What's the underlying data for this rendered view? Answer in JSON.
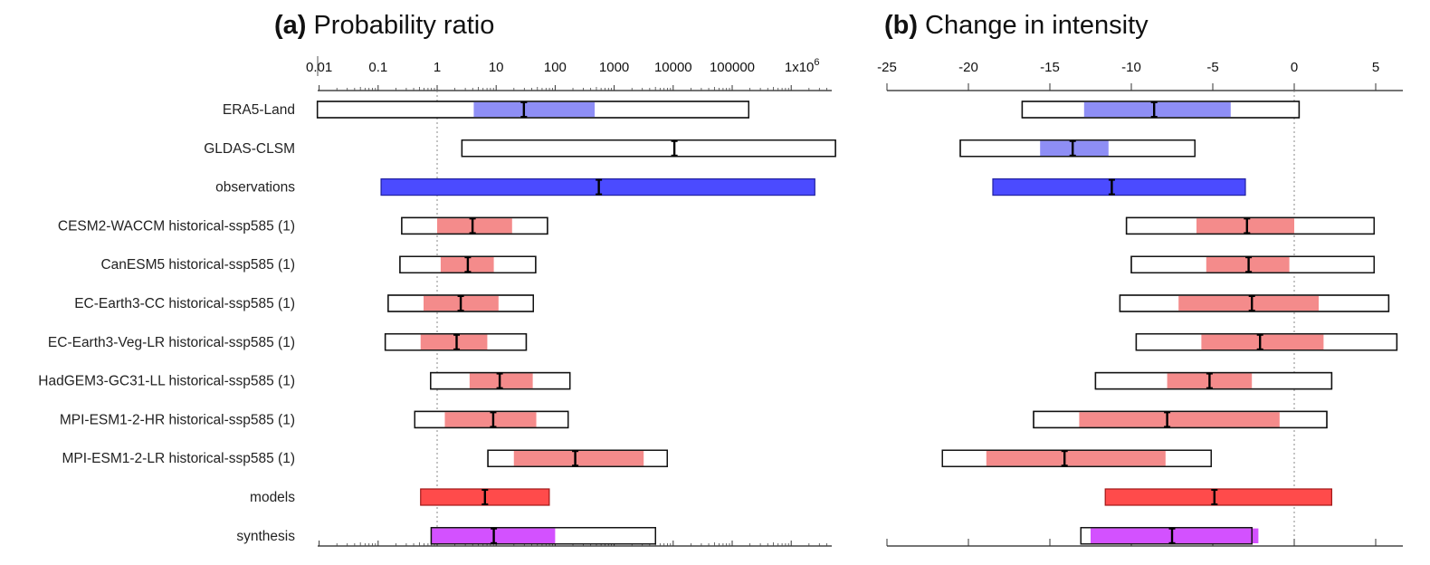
{
  "chart_data": [
    {
      "type": "bar",
      "subtype": "interval-bar (horizontal, log x)",
      "panel": "(a)",
      "title": "Probability ratio",
      "xlabel": "",
      "xscale": "log",
      "xlim_log10": [
        -2,
        6.7
      ],
      "tick_labels": [
        "0.01",
        "0.1",
        "1",
        "10",
        "100",
        "1000",
        "10000",
        "100000",
        "1x10^6"
      ],
      "tick_values": [
        0.01,
        0.1,
        1,
        10,
        100,
        1000,
        10000,
        100000,
        1000000
      ],
      "reference_line": 1,
      "note": "values below are log10(probability ratio): best estimate, outer (total) interval, inner (natural variability) interval",
      "rows": [
        {
          "label": "ERA5-Land",
          "group": "obs",
          "best": 1.47,
          "outer": [
            -2.03,
            5.28
          ],
          "inner": [
            0.62,
            2.67
          ]
        },
        {
          "label": "GLDAS-CLSM",
          "group": "obs",
          "best": 4.02,
          "outer": [
            0.42,
            6.75
          ],
          "inner": null
        },
        {
          "label": "observations",
          "group": "obs-synth",
          "best": 2.74,
          "outer": [
            -0.95,
            6.4
          ],
          "inner": null
        },
        {
          "label": "CESM2-WACCM historical-ssp585 (1)",
          "group": "model",
          "best": 0.6,
          "outer": [
            -0.6,
            1.87
          ],
          "inner": [
            0.0,
            1.27
          ]
        },
        {
          "label": "CanESM5 historical-ssp585 (1)",
          "group": "model",
          "best": 0.52,
          "outer": [
            -0.63,
            1.67
          ],
          "inner": [
            0.06,
            0.96
          ]
        },
        {
          "label": "EC-Earth3-CC historical-ssp585 (1)",
          "group": "model",
          "best": 0.4,
          "outer": [
            -0.83,
            1.63
          ],
          "inner": [
            -0.23,
            1.04
          ]
        },
        {
          "label": "EC-Earth3-Veg-LR historical-ssp585 (1)",
          "group": "model",
          "best": 0.33,
          "outer": [
            -0.88,
            1.51
          ],
          "inner": [
            -0.28,
            0.85
          ]
        },
        {
          "label": "HadGEM3-GC31-LL historical-ssp585 (1)",
          "group": "model",
          "best": 1.06,
          "outer": [
            -0.11,
            2.25
          ],
          "inner": [
            0.55,
            1.62
          ]
        },
        {
          "label": "MPI-ESM1-2-HR historical-ssp585 (1)",
          "group": "model",
          "best": 0.95,
          "outer": [
            -0.38,
            2.22
          ],
          "inner": [
            0.13,
            1.68
          ]
        },
        {
          "label": "MPI-ESM1-2-LR historical-ssp585 (1)",
          "group": "model",
          "best": 2.34,
          "outer": [
            0.86,
            3.9
          ],
          "inner": [
            1.3,
            3.5
          ]
        },
        {
          "label": "models",
          "group": "model-synth",
          "best": 0.81,
          "outer": [
            -0.28,
            1.9
          ],
          "inner": null
        },
        {
          "label": "synthesis",
          "group": "synthesis",
          "best": 0.96,
          "outer": [
            -0.1,
            3.7
          ],
          "inner": [
            -0.1,
            2.0
          ]
        }
      ]
    },
    {
      "type": "bar",
      "subtype": "interval-bar (horizontal, linear x)",
      "panel": "(b)",
      "title": "Change in intensity",
      "xlabel": "",
      "xscale": "linear",
      "xlim": [
        -25,
        6.7
      ],
      "tick_labels": [
        "-25",
        "-20",
        "-15",
        "-10",
        "-5",
        "0",
        "5"
      ],
      "tick_values": [
        -25,
        -20,
        -15,
        -10,
        -5,
        0,
        5
      ],
      "reference_line": 0,
      "rows": [
        {
          "label": "ERA5-Land",
          "group": "obs",
          "best": -8.6,
          "outer": [
            -16.7,
            0.3
          ],
          "inner": [
            -12.9,
            -3.9
          ]
        },
        {
          "label": "GLDAS-CLSM",
          "group": "obs",
          "best": -13.6,
          "outer": [
            -20.5,
            -6.1
          ],
          "inner": [
            -15.6,
            -11.4
          ]
        },
        {
          "label": "observations",
          "group": "obs-synth",
          "best": -11.2,
          "outer": [
            -18.5,
            -3.0
          ],
          "inner": null
        },
        {
          "label": "CESM2-WACCM historical-ssp585 (1)",
          "group": "model",
          "best": -2.9,
          "outer": [
            -10.3,
            4.9
          ],
          "inner": [
            -6.0,
            0.0
          ]
        },
        {
          "label": "CanESM5 historical-ssp585 (1)",
          "group": "model",
          "best": -2.8,
          "outer": [
            -10.0,
            4.9
          ],
          "inner": [
            -5.4,
            -0.3
          ]
        },
        {
          "label": "EC-Earth3-CC historical-ssp585 (1)",
          "group": "model",
          "best": -2.6,
          "outer": [
            -10.7,
            5.8
          ],
          "inner": [
            -7.1,
            1.5
          ]
        },
        {
          "label": "EC-Earth3-Veg-LR historical-ssp585 (1)",
          "group": "model",
          "best": -2.1,
          "outer": [
            -9.7,
            6.3
          ],
          "inner": [
            -5.7,
            1.8
          ]
        },
        {
          "label": "HadGEM3-GC31-LL historical-ssp585 (1)",
          "group": "model",
          "best": -5.2,
          "outer": [
            -12.2,
            2.3
          ],
          "inner": [
            -7.8,
            -2.6
          ]
        },
        {
          "label": "MPI-ESM1-2-HR historical-ssp585 (1)",
          "group": "model",
          "best": -7.8,
          "outer": [
            -16.0,
            2.0
          ],
          "inner": [
            -13.2,
            -0.9
          ]
        },
        {
          "label": "MPI-ESM1-2-LR historical-ssp585 (1)",
          "group": "model",
          "best": -14.1,
          "outer": [
            -21.6,
            -5.1
          ],
          "inner": [
            -18.9,
            -7.9
          ]
        },
        {
          "label": "models",
          "group": "model-synth",
          "best": -4.9,
          "outer": [
            -11.6,
            2.3
          ],
          "inner": null
        },
        {
          "label": "synthesis",
          "group": "synthesis",
          "best": -7.5,
          "outer": [
            -13.1,
            -2.6
          ],
          "inner": [
            -12.5,
            -2.2
          ]
        }
      ]
    }
  ],
  "colors": {
    "obs_inner": "#8a8af5",
    "obs_synth": "#4b4bff",
    "model_inner": "#f48787",
    "model_synth": "#ff4b4b",
    "synthesis": "#d24bff",
    "outline": "#111111",
    "refline": "#888888"
  },
  "titles": {
    "a_letter": "(a)",
    "a_text": "Probability ratio",
    "b_letter": "(b)",
    "b_text": "Change in intensity"
  }
}
